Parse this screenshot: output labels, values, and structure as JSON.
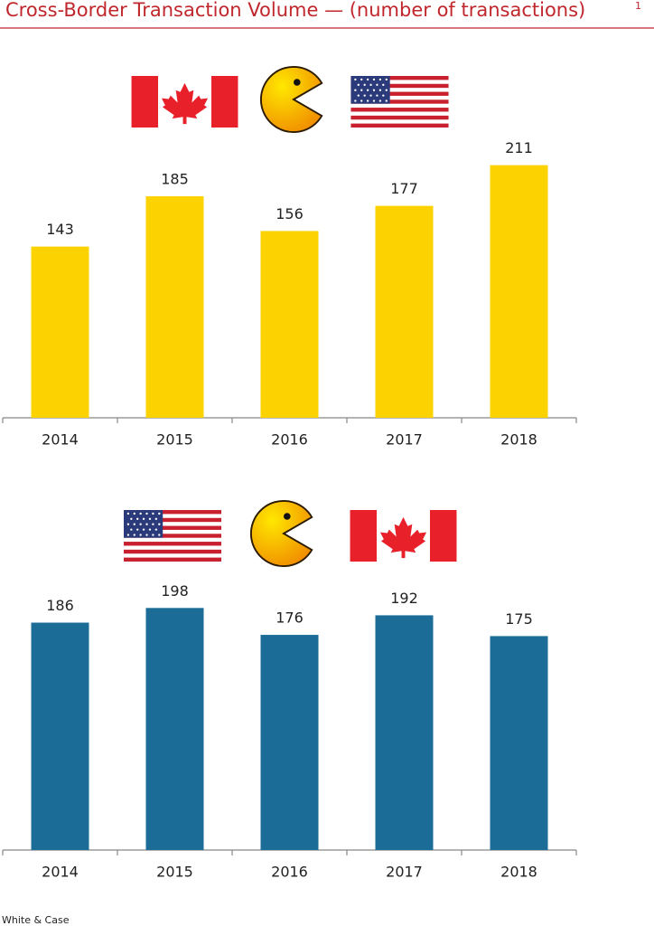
{
  "header": {
    "title": "Cross-Border Transaction Volume — (number of transactions)",
    "note_marker": "1"
  },
  "chart_data": [
    {
      "type": "bar",
      "categories": [
        "2014",
        "2015",
        "2016",
        "2017",
        "2018"
      ],
      "values": [
        143,
        185,
        156,
        177,
        211
      ],
      "color": "#fcd200",
      "ylim": [
        0,
        250
      ]
    },
    {
      "type": "bar",
      "categories": [
        "2014",
        "2015",
        "2016",
        "2017",
        "2018"
      ],
      "values": [
        186,
        198,
        176,
        192,
        175
      ],
      "color": "#1b6d98",
      "ylim": [
        0,
        250
      ]
    }
  ],
  "footer": "White & Case"
}
